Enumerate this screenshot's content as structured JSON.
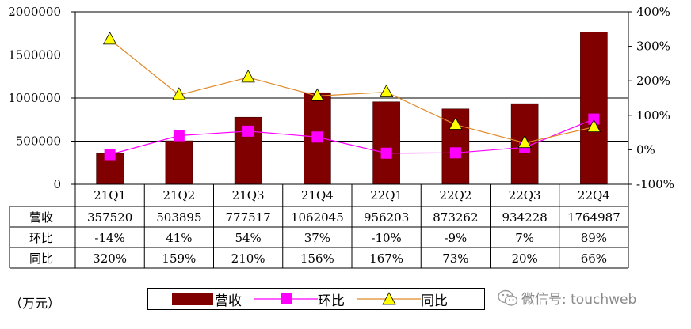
{
  "chart_data": {
    "type": "bar",
    "categories": [
      "21Q1",
      "21Q2",
      "21Q3",
      "21Q4",
      "22Q1",
      "22Q2",
      "22Q3",
      "22Q4"
    ],
    "series": [
      {
        "name": "营收",
        "type": "bar",
        "axis": "left",
        "color": "#800000",
        "values": [
          357520,
          503895,
          777517,
          1062045,
          956203,
          873262,
          934228,
          1764987
        ]
      },
      {
        "name": "环比",
        "type": "line",
        "axis": "right",
        "color": "#ff00ff",
        "marker": "square",
        "values": [
          -14,
          41,
          54,
          37,
          -10,
          -9,
          7,
          89
        ]
      },
      {
        "name": "同比",
        "type": "line",
        "axis": "right",
        "color": "#e08a28",
        "marker": "triangle",
        "values": [
          320,
          159,
          210,
          156,
          167,
          73,
          20,
          66
        ]
      }
    ],
    "yleft": {
      "ticks": [
        "0",
        "500000",
        "1000000",
        "1500000",
        "2000000"
      ],
      "min": 0,
      "max": 2000000
    },
    "yright": {
      "ticks": [
        "-100%",
        "0%",
        "100%",
        "200%",
        "300%",
        "400%"
      ],
      "min": -100,
      "max": 400
    },
    "table": {
      "rows": [
        {
          "label": "营收",
          "cells": [
            "357520",
            "503895",
            "777517",
            "1062045",
            "956203",
            "873262",
            "934228",
            "1764987"
          ]
        },
        {
          "label": "环比",
          "cells": [
            "-14%",
            "41%",
            "54%",
            "37%",
            "-10%",
            "-9%",
            "7%",
            "89%"
          ]
        },
        {
          "label": "同比",
          "cells": [
            "320%",
            "159%",
            "210%",
            "156%",
            "167%",
            "73%",
            "20%",
            "66%"
          ]
        }
      ]
    },
    "unit_label": "（万元）",
    "legend": [
      "营收",
      "环比",
      "同比"
    ],
    "grid": true
  },
  "watermark": {
    "text": "微信号: touchweb",
    "icon": "wechat-icon"
  }
}
